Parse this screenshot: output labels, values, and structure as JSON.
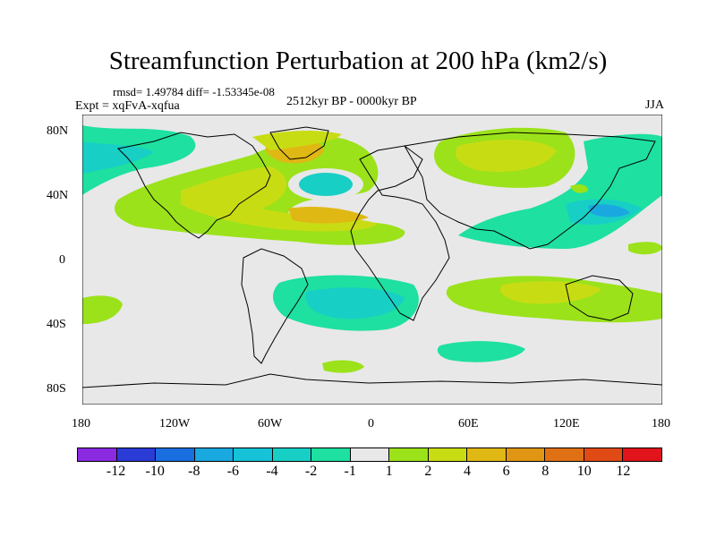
{
  "title": "Streamfunction Perturbation at 200 hPa (km2/s)",
  "meta": {
    "stats": "rmsd= 1.49784 diff= -1.53345e-08",
    "experiment": "Expt = xqFvA-xqfua",
    "period": "2512kyr BP - 0000kyr BP",
    "season": "JJA"
  },
  "axes": {
    "lat_ticks": [
      "80N",
      "40N",
      "0",
      "40S",
      "80S"
    ],
    "lon_ticks": [
      "180",
      "120W",
      "60W",
      "0",
      "60E",
      "120E",
      "180"
    ]
  },
  "colorbar": {
    "colors": [
      "#8a2be2",
      "#2b3bd6",
      "#1a6fe0",
      "#1aa8e0",
      "#15c2d8",
      "#18cfc6",
      "#1ee0a0",
      "#e8e8e8",
      "#9be21a",
      "#c8dc14",
      "#e0b814",
      "#e09614",
      "#e07014",
      "#e04a14",
      "#e0141a"
    ],
    "labels": [
      "-12",
      "-10",
      "-8",
      "-6",
      "-4",
      "-2",
      "-1",
      "1",
      "2",
      "4",
      "6",
      "8",
      "10",
      "12"
    ]
  },
  "map": {
    "background_color": "#e8e8e8",
    "projection": "cylindrical-equidistant",
    "lon_range": [
      -180,
      180
    ],
    "lat_range": [
      -90,
      90
    ]
  }
}
